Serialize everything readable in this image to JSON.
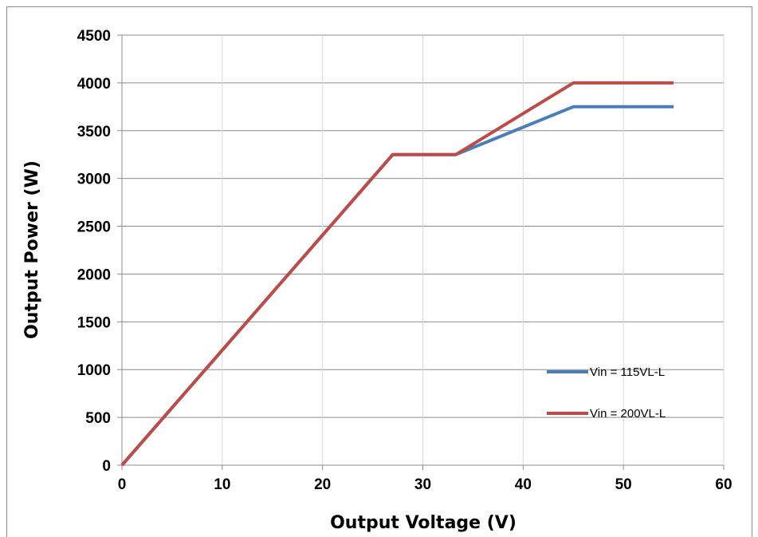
{
  "chart_data": {
    "type": "line",
    "title": "",
    "xlabel": "Output Voltage (V)",
    "ylabel": "Output Power (W)",
    "xlim": [
      0,
      60
    ],
    "ylim": [
      0,
      4500
    ],
    "x_ticks": [
      0,
      10,
      20,
      30,
      40,
      50,
      60
    ],
    "y_ticks": [
      0,
      500,
      1000,
      1500,
      2000,
      2500,
      3000,
      3500,
      4000,
      4500
    ],
    "grid": true,
    "legend_position": "bottom-right",
    "series": [
      {
        "name": "Vin = 115VL-L",
        "color": "#4a7ebb",
        "x": [
          0,
          27,
          33.3,
          45,
          55
        ],
        "y": [
          0,
          3250,
          3250,
          3750,
          3750
        ]
      },
      {
        "name": "Vin = 200VL-L",
        "color": "#be4b48",
        "x": [
          0,
          27,
          33.3,
          45,
          55
        ],
        "y": [
          0,
          3250,
          3250,
          4000,
          4000
        ]
      }
    ]
  }
}
